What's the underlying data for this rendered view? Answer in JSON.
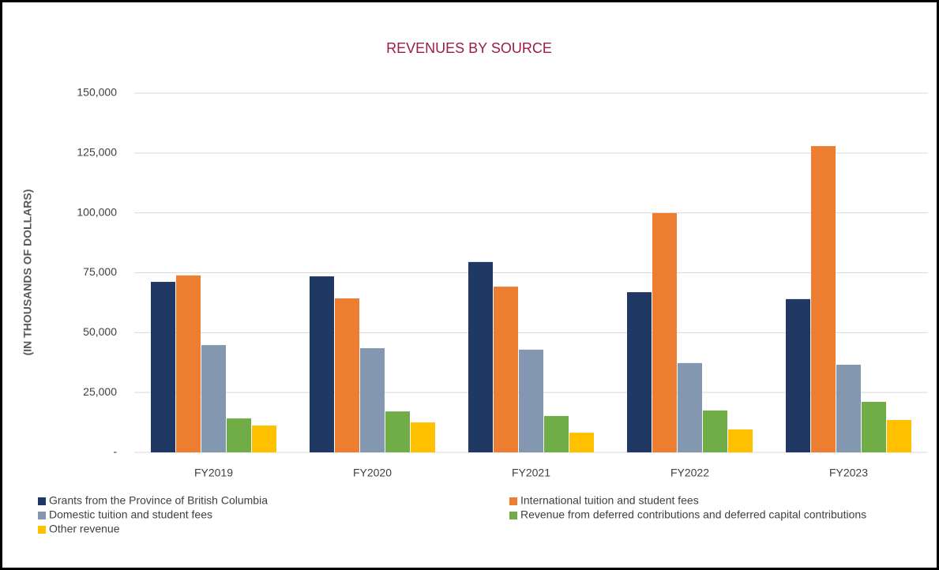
{
  "chart_data": {
    "type": "bar",
    "title": "REVENUES BY SOURCE",
    "y_label": "(IN THOUSANDS OF DOLLARS)",
    "categories": [
      "FY2019",
      "FY2020",
      "FY2021",
      "FY2022",
      "FY2023"
    ],
    "series": [
      {
        "name": "Grants from the Province of British Columbia",
        "color": "#203864",
        "values": [
          71200,
          73500,
          79500,
          66900,
          64000
        ]
      },
      {
        "name": "International tuition and student fees",
        "color": "#ed7d31",
        "values": [
          73900,
          64300,
          69200,
          99900,
          127900
        ]
      },
      {
        "name": "Domestic tuition and student fees",
        "color": "#8497b0",
        "values": [
          44800,
          43500,
          42900,
          37300,
          36600
        ]
      },
      {
        "name": "Revenue from deferred contributions and deferred capital contributions",
        "color": "#70ad47",
        "values": [
          14200,
          17100,
          15200,
          17500,
          21100
        ]
      },
      {
        "name": "Other revenue",
        "color": "#ffc000",
        "values": [
          11200,
          12500,
          8200,
          9600,
          13500
        ]
      }
    ],
    "ylim": [
      0,
      150000
    ],
    "yticks": [
      {
        "value": 0,
        "label": "-"
      },
      {
        "value": 25000,
        "label": "25,000"
      },
      {
        "value": 50000,
        "label": "50,000"
      },
      {
        "value": 75000,
        "label": "75,000"
      },
      {
        "value": 100000,
        "label": "100,000"
      },
      {
        "value": 125000,
        "label": "125,000"
      },
      {
        "value": 150000,
        "label": "150,000"
      }
    ],
    "grid": true,
    "legend": "bottom"
  }
}
